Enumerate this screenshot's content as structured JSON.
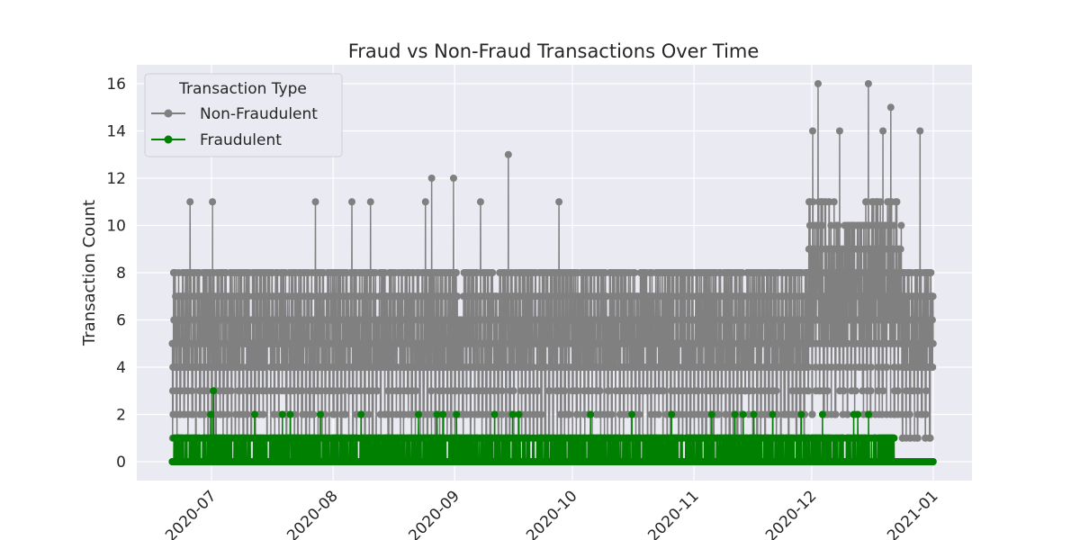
{
  "chart_data": {
    "type": "line",
    "title": "Fraud vs Non-Fraud Transactions Over Time",
    "xlabel": "",
    "ylabel": "Transaction Count",
    "x_range": [
      "2020-06-21",
      "2020-12-31"
    ],
    "ylim": [
      -0.8,
      16.8
    ],
    "y_ticks": [
      0,
      2,
      4,
      6,
      8,
      10,
      12,
      14,
      16
    ],
    "x_ticks": [
      "2020-07",
      "2020-08",
      "2020-09",
      "2020-10",
      "2020-11",
      "2020-12",
      "2021-01"
    ],
    "x_tick_dates": [
      "2020-07-01",
      "2020-08-01",
      "2020-09-01",
      "2020-10-01",
      "2020-11-01",
      "2020-12-01",
      "2021-01-01"
    ],
    "grid": true,
    "legend": {
      "title": "Transaction Type",
      "position": "top-left",
      "entries": [
        "Non-Fraudulent",
        "Fraudulent"
      ]
    },
    "colors": {
      "non_fraud": "#808080",
      "fraud": "#008000",
      "plot_bg": "#eaeaf2",
      "grid": "#ffffff"
    },
    "series": [
      {
        "name": "Non-Fraudulent",
        "frequency": "hourly",
        "approx_typical_range": [
          1,
          9
        ],
        "peaks": [
          {
            "date": "2020-06-25",
            "value": 11
          },
          {
            "date": "2020-07-01",
            "value": 11
          },
          {
            "date": "2020-07-27",
            "value": 11
          },
          {
            "date": "2020-08-05",
            "value": 11
          },
          {
            "date": "2020-08-10",
            "value": 11
          },
          {
            "date": "2020-08-24",
            "value": 11
          },
          {
            "date": "2020-08-26",
            "value": 12
          },
          {
            "date": "2020-08-31",
            "value": 12
          },
          {
            "date": "2020-09-07",
            "value": 11
          },
          {
            "date": "2020-09-14",
            "value": 13
          },
          {
            "date": "2020-09-27",
            "value": 11
          },
          {
            "date": "2020-12-01",
            "value": 14
          },
          {
            "date": "2020-12-02",
            "value": 16
          },
          {
            "date": "2020-12-08",
            "value": 14
          },
          {
            "date": "2020-12-15",
            "value": 16
          },
          {
            "date": "2020-12-19",
            "value": 14
          },
          {
            "date": "2020-12-21",
            "value": 15
          },
          {
            "date": "2020-12-28",
            "value": 14
          }
        ]
      },
      {
        "name": "Fraudulent",
        "frequency": "hourly",
        "approx_typical_range": [
          0,
          1
        ],
        "peaks": [
          {
            "date": "2020-06-30",
            "value": 2
          },
          {
            "date": "2020-07-01",
            "value": 3
          },
          {
            "date": "2020-07-12",
            "value": 2
          },
          {
            "date": "2020-07-19",
            "value": 2
          },
          {
            "date": "2020-07-21",
            "value": 2
          },
          {
            "date": "2020-07-28",
            "value": 2
          },
          {
            "date": "2020-08-08",
            "value": 2
          },
          {
            "date": "2020-08-22",
            "value": 2
          },
          {
            "date": "2020-08-27",
            "value": 2
          },
          {
            "date": "2020-08-29",
            "value": 2
          },
          {
            "date": "2020-09-01",
            "value": 2
          },
          {
            "date": "2020-09-11",
            "value": 2
          },
          {
            "date": "2020-09-15",
            "value": 2
          },
          {
            "date": "2020-09-17",
            "value": 2
          },
          {
            "date": "2020-10-05",
            "value": 2
          },
          {
            "date": "2020-10-16",
            "value": 2
          },
          {
            "date": "2020-10-26",
            "value": 2
          },
          {
            "date": "2020-11-05",
            "value": 2
          },
          {
            "date": "2020-11-11",
            "value": 2
          },
          {
            "date": "2020-11-13",
            "value": 2
          },
          {
            "date": "2020-11-16",
            "value": 2
          },
          {
            "date": "2020-11-21",
            "value": 2
          },
          {
            "date": "2020-11-28",
            "value": 2
          },
          {
            "date": "2020-12-03",
            "value": 2
          },
          {
            "date": "2020-12-11",
            "value": 2
          },
          {
            "date": "2020-12-12",
            "value": 2
          },
          {
            "date": "2020-12-15",
            "value": 2
          }
        ]
      }
    ]
  }
}
